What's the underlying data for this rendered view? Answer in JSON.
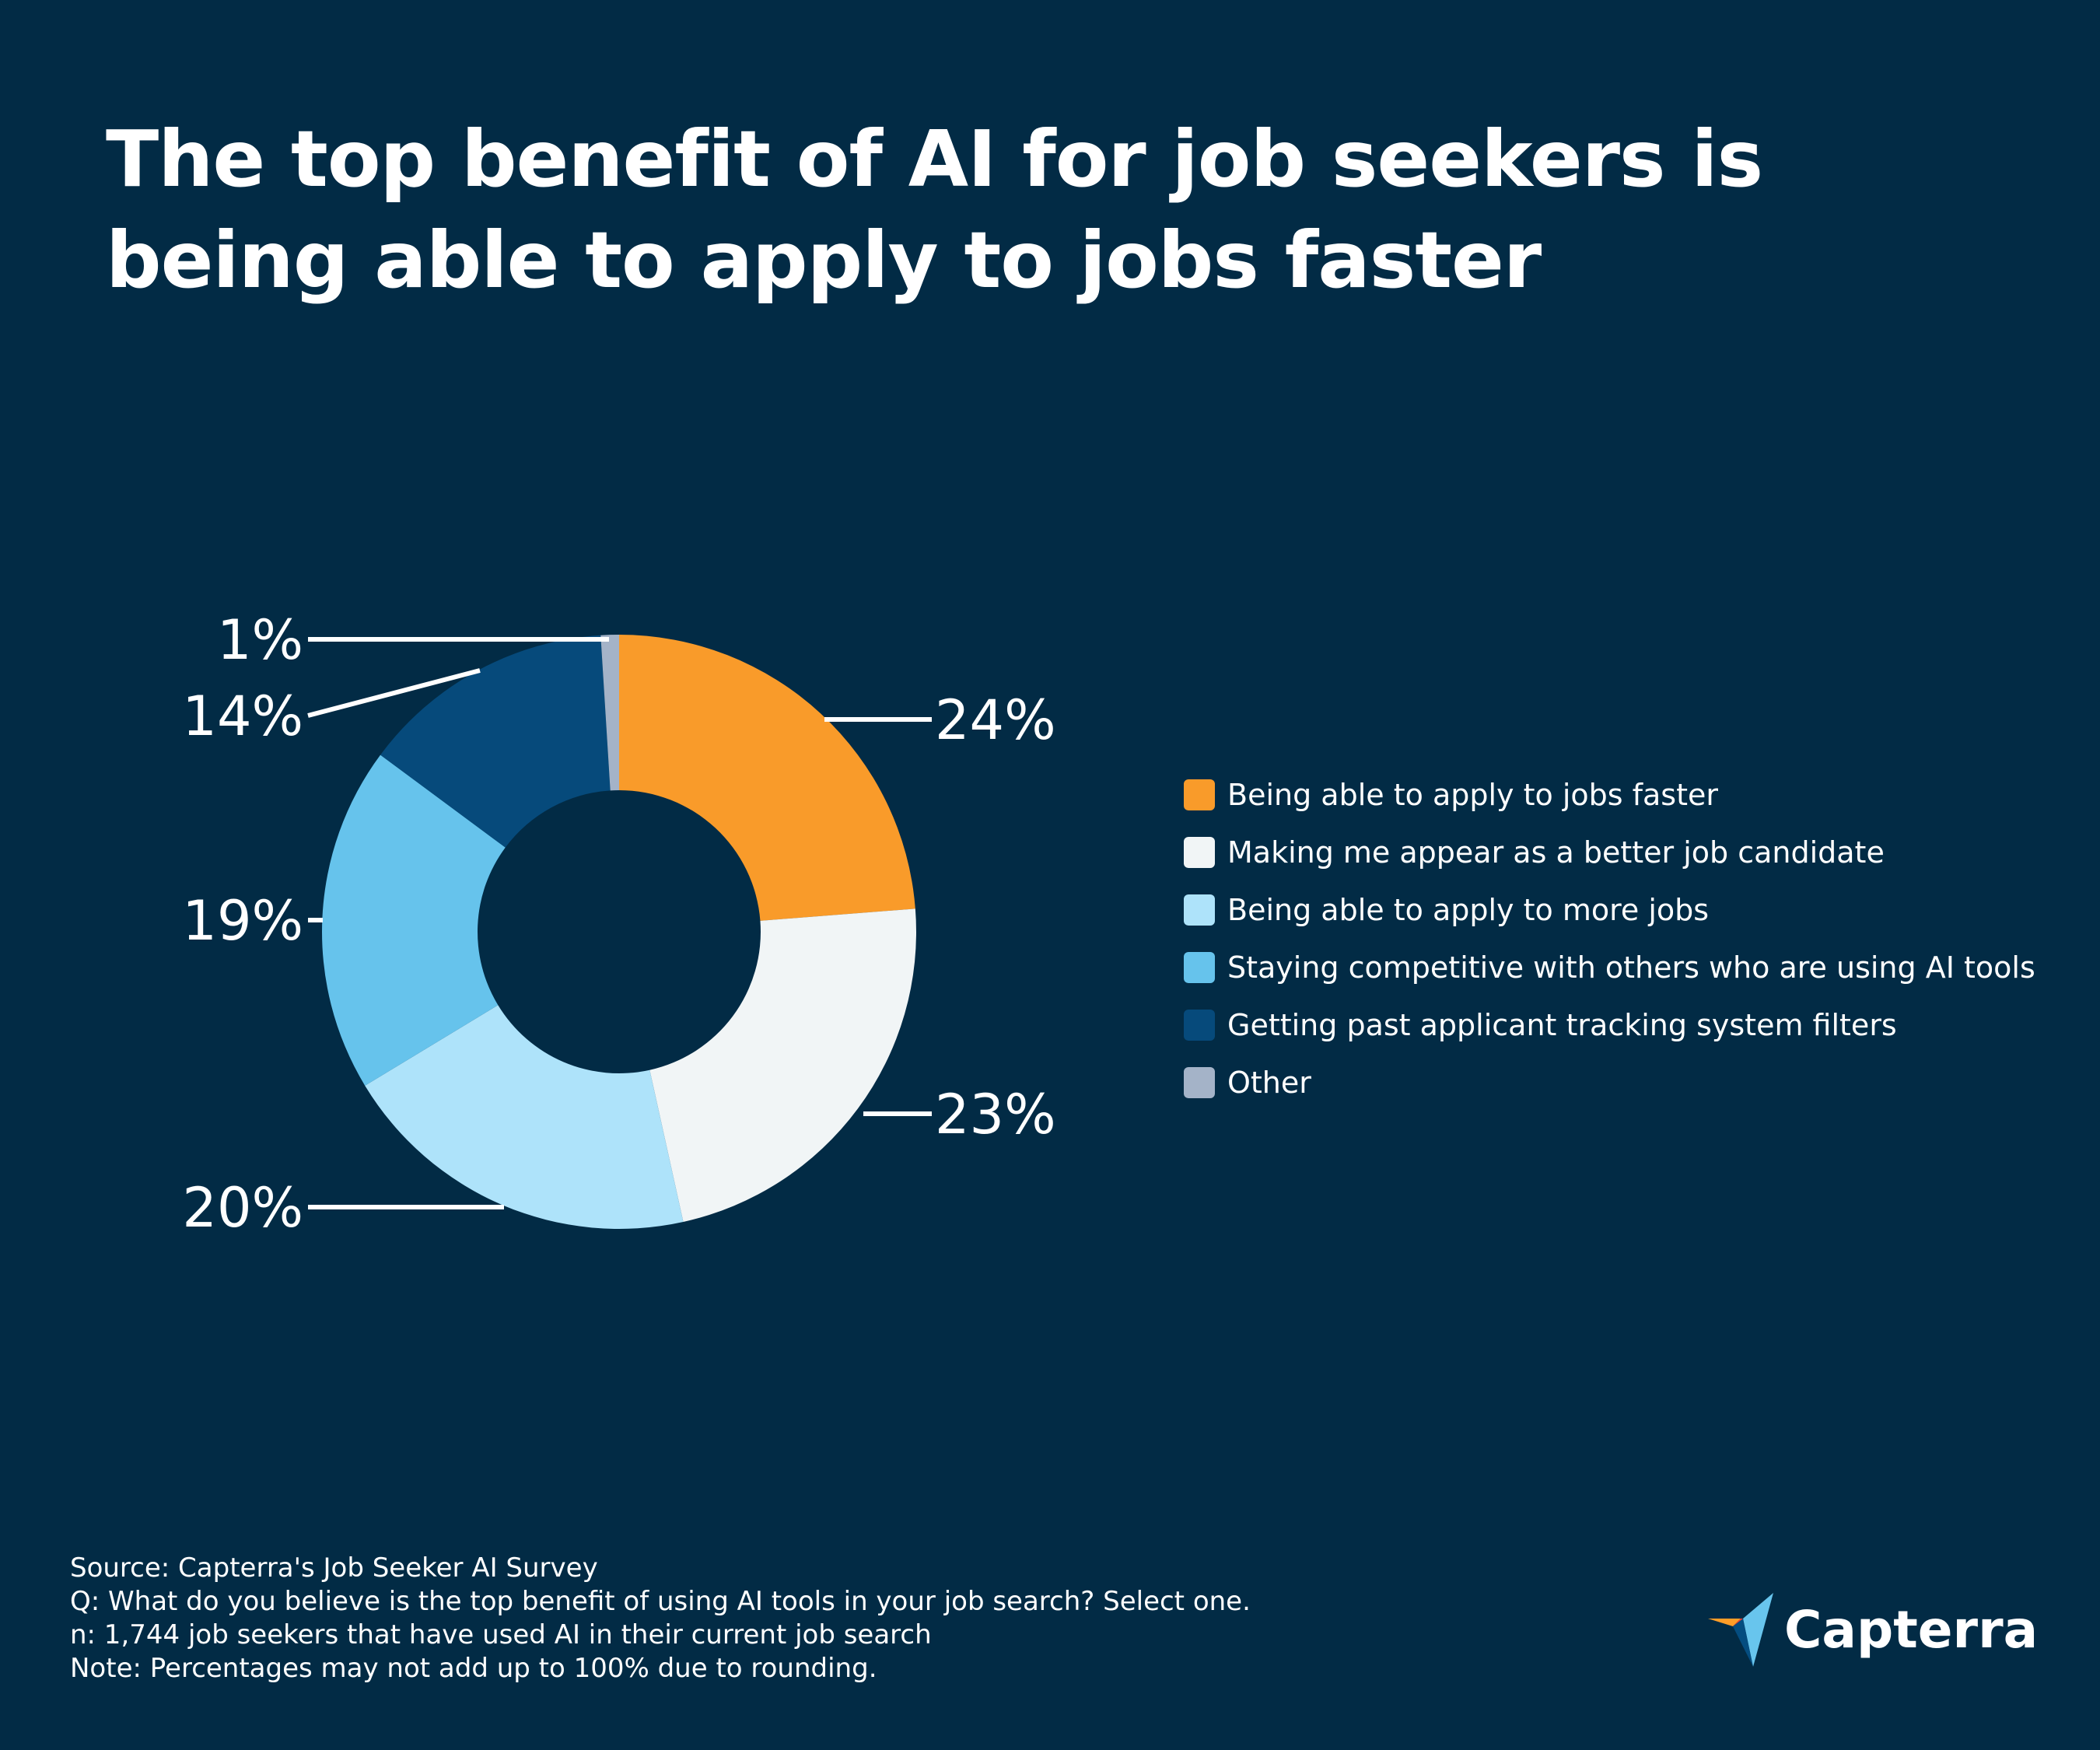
{
  "title": "The top benefit of AI for job seekers is being able to apply to jobs faster",
  "chart_data": {
    "type": "pie",
    "variant": "donut",
    "series": [
      {
        "name": "Being able to apply to jobs faster",
        "value": 24,
        "label": "24%",
        "color": "#f99b2a"
      },
      {
        "name": "Making me appear as a better job candidate",
        "value": 23,
        "label": "23%",
        "color": "#f1f5f6"
      },
      {
        "name": "Being able to apply to more jobs",
        "value": 20,
        "label": "20%",
        "color": "#aee3fa"
      },
      {
        "name": "Staying competitive with others who are using AI tools",
        "value": 19,
        "label": "19%",
        "color": "#66c3ec"
      },
      {
        "name": "Getting past applicant tracking system filters",
        "value": 14,
        "label": "14%",
        "color": "#064a7b"
      },
      {
        "name": "Other",
        "value": 1,
        "label": "1%",
        "color": "#a4b3c8"
      }
    ],
    "legend_position": "right"
  },
  "footer": {
    "source": "Source: Capterra's Job Seeker AI Survey",
    "question": "Q: What do you believe is the top benefit of using AI tools in your job search? Select one.",
    "sample": "n: 1,744 job seekers that have used AI in their current job search",
    "note": "Note: Percentages may not add up to 100% due to rounding."
  },
  "logo": {
    "text": "Capterra",
    "colors": [
      "#ff9d28",
      "#68c5ed",
      "#044d80",
      "#ff3d2e"
    ]
  }
}
